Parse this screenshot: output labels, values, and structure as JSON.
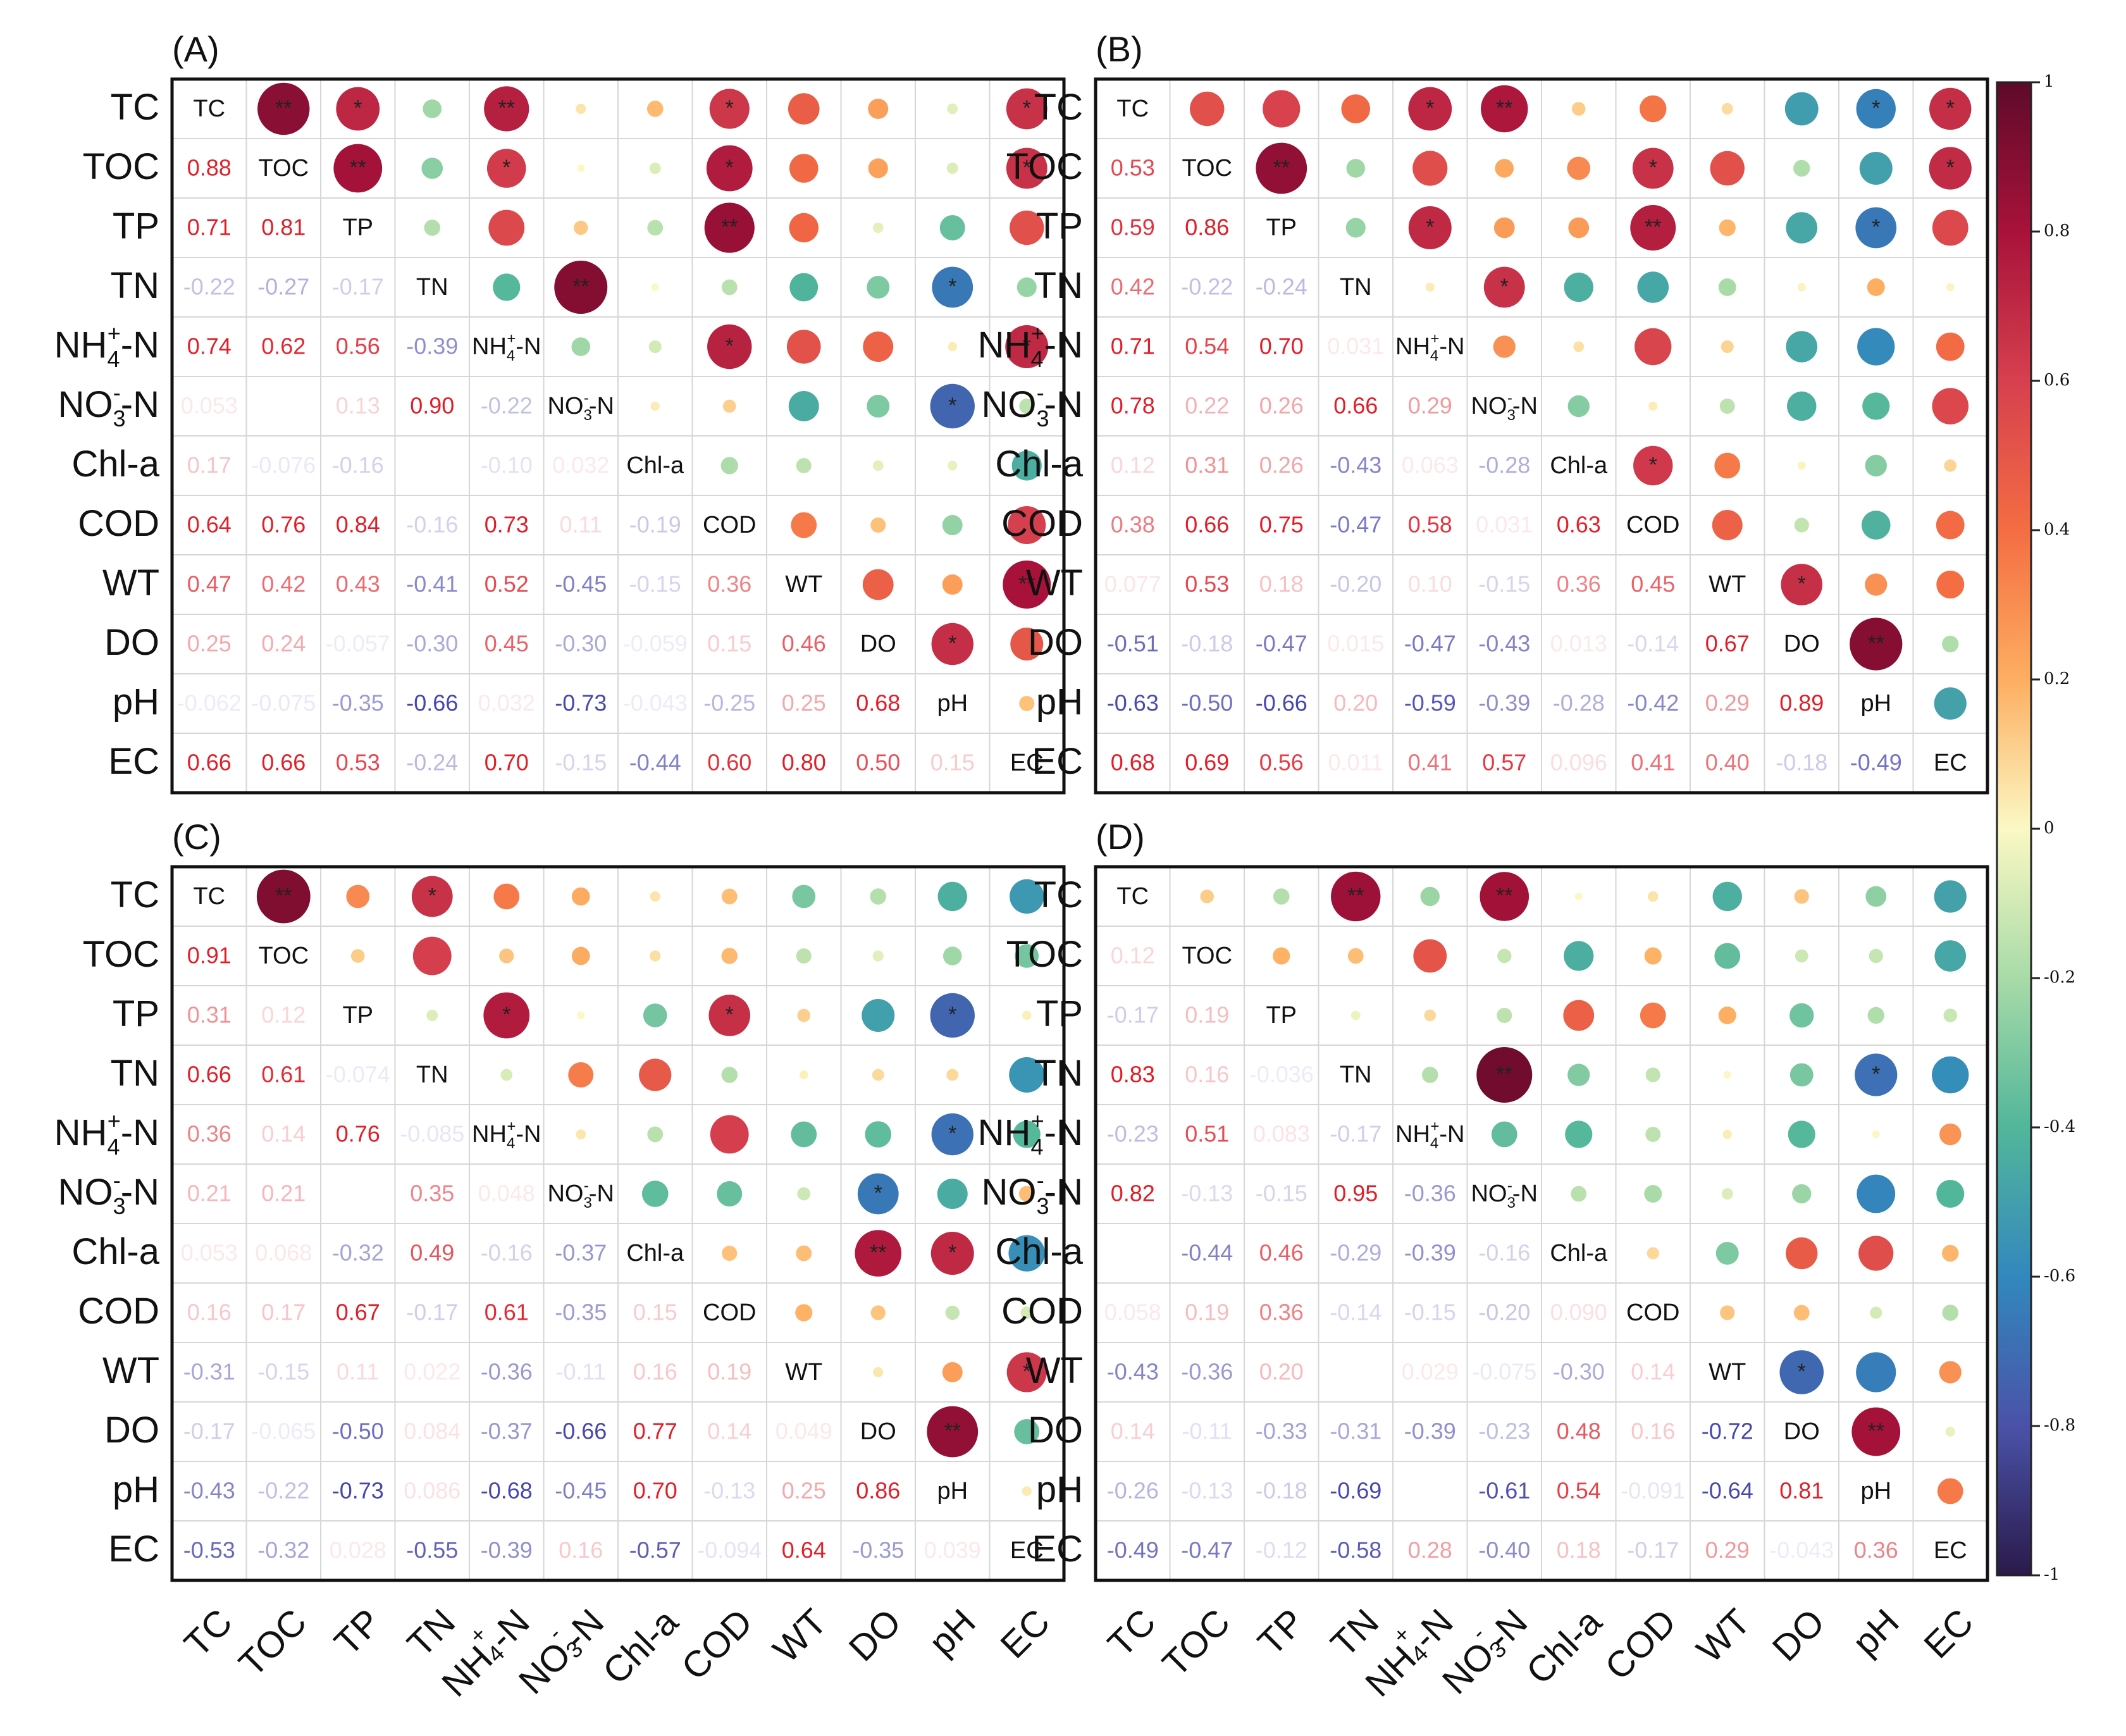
{
  "chart_data": {
    "type": "correlation-matrix",
    "variables": [
      "TC",
      "TOC",
      "TP",
      "TN",
      "NH4+-N",
      "NO3--N",
      "Chl-a",
      "COD",
      "WT",
      "DO",
      "pH",
      "EC"
    ],
    "variable_labels": [
      {
        "base": "TC",
        "sub": "",
        "sup": "",
        "tail": ""
      },
      {
        "base": "TOC",
        "sub": "",
        "sup": "",
        "tail": ""
      },
      {
        "base": "TP",
        "sub": "",
        "sup": "",
        "tail": ""
      },
      {
        "base": "TN",
        "sub": "",
        "sup": "",
        "tail": ""
      },
      {
        "base": "NH",
        "sub": "4",
        "sup": "+",
        "tail": "-N"
      },
      {
        "base": "NO",
        "sub": "3",
        "sup": "-",
        "tail": "-N"
      },
      {
        "base": "Chl-a",
        "sub": "",
        "sup": "",
        "tail": ""
      },
      {
        "base": "COD",
        "sub": "",
        "sup": "",
        "tail": ""
      },
      {
        "base": "WT",
        "sub": "",
        "sup": "",
        "tail": ""
      },
      {
        "base": "DO",
        "sub": "",
        "sup": "",
        "tail": ""
      },
      {
        "base": "pH",
        "sub": "",
        "sup": "",
        "tail": ""
      },
      {
        "base": "EC",
        "sub": "",
        "sup": "",
        "tail": ""
      }
    ],
    "colorbar": {
      "range": [
        -1,
        1
      ],
      "ticks": [
        "1",
        "0.8",
        "0.6",
        "0.4",
        "0.2",
        "0",
        "-0.2",
        "-0.4",
        "-0.6",
        "-0.8",
        "-1"
      ],
      "tick_values": [
        1,
        0.8,
        0.6,
        0.4,
        0.2,
        0,
        -0.2,
        -0.4,
        -0.6,
        -0.8,
        -1
      ],
      "colormap": "Spectral_r"
    },
    "panels": [
      {
        "label": "(A)",
        "lower_labels": [
          [
            "0.88"
          ],
          [
            "0.71",
            "0.81"
          ],
          [
            "-0.22",
            "-0.27",
            "-0.17"
          ],
          [
            "0.74",
            "0.62",
            "0.56",
            "-0.39"
          ],
          [
            "0.053",
            "",
            "0.13",
            "0.90",
            "-0.22"
          ],
          [
            "0.17",
            "-0.076",
            "-0.16",
            "",
            "-0.10",
            "0.032"
          ],
          [
            "0.64",
            "0.76",
            "0.84",
            "-0.16",
            "0.73",
            "0.11",
            "-0.19"
          ],
          [
            "0.47",
            "0.42",
            "0.43",
            "-0.41",
            "0.52",
            "-0.45",
            "-0.15",
            "0.36"
          ],
          [
            "0.25",
            "0.24",
            "-0.057",
            "-0.30",
            "0.45",
            "-0.30",
            "-0.059",
            "0.15",
            "0.46"
          ],
          [
            "-0.062",
            "-0.075",
            "-0.35",
            "-0.66",
            "0.032",
            "-0.73",
            "-0.043",
            "-0.25",
            "0.25",
            "0.68"
          ],
          [
            "0.66",
            "0.66",
            "0.53",
            "-0.24",
            "0.70",
            "-0.15",
            "-0.44",
            "0.60",
            "0.80",
            "0.50",
            "0.15"
          ]
        ],
        "significance": [
          [
            "",
            "**",
            "*",
            "",
            "**",
            "",
            "",
            "*",
            "",
            "",
            "",
            "*"
          ],
          [
            "",
            "",
            "**",
            "",
            "*",
            "",
            "",
            "*",
            "",
            "",
            "",
            "*"
          ],
          [
            "",
            "",
            "",
            "",
            "",
            "",
            "",
            "**",
            "",
            "",
            "",
            ""
          ],
          [
            "",
            "",
            "",
            "",
            "",
            "**",
            "",
            "",
            "",
            "",
            "*",
            ""
          ],
          [
            "",
            "",
            "",
            "",
            "",
            "",
            "",
            "*",
            "",
            "",
            "",
            "*"
          ],
          [
            "",
            "",
            "",
            "",
            "",
            "",
            "",
            "",
            "",
            "",
            "*",
            ""
          ],
          [
            "",
            "",
            "",
            "",
            "",
            "",
            "",
            "",
            "",
            "",
            "",
            ""
          ],
          [
            "",
            "",
            "",
            "",
            "",
            "",
            "",
            "",
            "",
            "",
            "",
            ""
          ],
          [
            "",
            "",
            "",
            "",
            "",
            "",
            "",
            "",
            "",
            "",
            "",
            "**"
          ],
          [
            "",
            "",
            "",
            "",
            "",
            "",
            "",
            "",
            "",
            "",
            "*",
            ""
          ],
          [
            "",
            "",
            "",
            "",
            "",
            "",
            "",
            "",
            "",
            "",
            "",
            ""
          ]
        ]
      },
      {
        "label": "(B)",
        "lower_labels": [
          [
            "0.53"
          ],
          [
            "0.59",
            "0.86"
          ],
          [
            "0.42",
            "-0.22",
            "-0.24"
          ],
          [
            "0.71",
            "0.54",
            "0.70",
            "0.031"
          ],
          [
            "0.78",
            "0.22",
            "0.26",
            "0.66",
            "0.29"
          ],
          [
            "0.12",
            "0.31",
            "0.26",
            "-0.43",
            "0.063",
            "-0.28"
          ],
          [
            "0.38",
            "0.66",
            "0.75",
            "-0.47",
            "0.58",
            "0.031",
            "0.63"
          ],
          [
            "0.077",
            "0.53",
            "0.18",
            "-0.20",
            "0.10",
            "-0.15",
            "0.36",
            "0.45"
          ],
          [
            "-0.51",
            "-0.18",
            "-0.47",
            "0.015",
            "-0.47",
            "-0.43",
            "0.013",
            "-0.14",
            "0.67"
          ],
          [
            "-0.63",
            "-0.50",
            "-0.66",
            "0.20",
            "-0.59",
            "-0.39",
            "-0.28",
            "-0.42",
            "0.29",
            "0.89"
          ],
          [
            "0.68",
            "0.69",
            "0.56",
            "0.011",
            "0.41",
            "0.57",
            "0.096",
            "0.41",
            "0.40",
            "-0.18",
            "-0.49"
          ]
        ],
        "significance": [
          [
            "",
            "",
            "",
            "",
            "*",
            "**",
            "",
            "",
            "",
            "",
            "*",
            "*"
          ],
          [
            "",
            "",
            "**",
            "",
            "",
            "",
            "",
            "*",
            "",
            "",
            "",
            "*"
          ],
          [
            "",
            "",
            "",
            "",
            "*",
            "",
            "",
            "**",
            "",
            "",
            "*",
            ""
          ],
          [
            "",
            "",
            "",
            "",
            "",
            "*",
            "",
            "",
            "",
            "",
            "",
            ""
          ],
          [
            "",
            "",
            "",
            "",
            "",
            "",
            "",
            "",
            "",
            "",
            "",
            ""
          ],
          [
            "",
            "",
            "",
            "",
            "",
            "",
            "",
            "",
            "",
            "",
            "",
            ""
          ],
          [
            "",
            "",
            "",
            "",
            "",
            "",
            "",
            "*",
            "",
            "",
            "",
            ""
          ],
          [
            "",
            "",
            "",
            "",
            "",
            "",
            "",
            "",
            "",
            "",
            "",
            ""
          ],
          [
            "",
            "",
            "",
            "",
            "",
            "",
            "",
            "",
            "",
            "*",
            "",
            ""
          ],
          [
            "",
            "",
            "",
            "",
            "",
            "",
            "",
            "",
            "",
            "",
            "**",
            ""
          ],
          [
            "",
            "",
            "",
            "",
            "",
            "",
            "",
            "",
            "",
            "",
            "",
            ""
          ]
        ]
      },
      {
        "label": "(C)",
        "lower_labels": [
          [
            "0.91"
          ],
          [
            "0.31",
            "0.12"
          ],
          [
            "0.66",
            "0.61",
            "-0.074"
          ],
          [
            "0.36",
            "0.14",
            "0.76",
            "-0.085"
          ],
          [
            "0.21",
            "0.21",
            "",
            "0.35",
            "0.048"
          ],
          [
            "0.053",
            "0.068",
            "-0.32",
            "0.49",
            "-0.16",
            "-0.37"
          ],
          [
            "0.16",
            "0.17",
            "0.67",
            "-0.17",
            "0.61",
            "-0.35",
            "0.15"
          ],
          [
            "-0.31",
            "-0.15",
            "0.11",
            "0.022",
            "-0.36",
            "-0.11",
            "0.16",
            "0.19"
          ],
          [
            "-0.17",
            "-0.065",
            "-0.50",
            "0.084",
            "-0.37",
            "-0.66",
            "0.77",
            "0.14",
            "0.049"
          ],
          [
            "-0.43",
            "-0.22",
            "-0.73",
            "0.086",
            "-0.68",
            "-0.45",
            "0.70",
            "-0.13",
            "0.25",
            "0.86"
          ],
          [
            "-0.53",
            "-0.32",
            "0.028",
            "-0.55",
            "-0.39",
            "0.16",
            "-0.57",
            "-0.094",
            "0.64",
            "-0.35",
            "0.039"
          ]
        ],
        "significance": [
          [
            "",
            "**",
            "",
            "*",
            "",
            "",
            "",
            "",
            "",
            "",
            "",
            ""
          ],
          [
            "",
            "",
            "",
            "",
            "",
            "",
            "",
            "",
            "",
            "",
            "",
            ""
          ],
          [
            "",
            "",
            "",
            "",
            "*",
            "",
            "",
            "*",
            "",
            "",
            "*",
            ""
          ],
          [
            "",
            "",
            "",
            "",
            "",
            "",
            "",
            "",
            "",
            "",
            "",
            ""
          ],
          [
            "",
            "",
            "",
            "",
            "",
            "",
            "",
            "",
            "",
            "",
            "*",
            ""
          ],
          [
            "",
            "",
            "",
            "",
            "",
            "",
            "",
            "",
            "",
            "*",
            "",
            ""
          ],
          [
            "",
            "",
            "",
            "",
            "",
            "",
            "",
            "",
            "",
            "**",
            "*",
            ""
          ],
          [
            "",
            "",
            "",
            "",
            "",
            "",
            "",
            "",
            "",
            "",
            "",
            ""
          ],
          [
            "",
            "",
            "",
            "",
            "",
            "",
            "",
            "",
            "",
            "",
            "",
            "*"
          ],
          [
            "",
            "",
            "",
            "",
            "",
            "",
            "",
            "",
            "",
            "",
            "**",
            ""
          ],
          [
            "",
            "",
            "",
            "",
            "",
            "",
            "",
            "",
            "",
            "",
            "",
            ""
          ]
        ]
      },
      {
        "label": "(D)",
        "lower_labels": [
          [
            "0.12"
          ],
          [
            "-0.17",
            "0.19"
          ],
          [
            "0.83",
            "0.16",
            "-0.036"
          ],
          [
            "-0.23",
            "0.51",
            "0.083",
            "-0.17"
          ],
          [
            "0.82",
            "-0.13",
            "-0.15",
            "0.95",
            "-0.36"
          ],
          [
            "",
            "-0.44",
            "0.46",
            "-0.29",
            "-0.39",
            "-0.16"
          ],
          [
            "0.058",
            "0.19",
            "0.36",
            "-0.14",
            "-0.15",
            "-0.20",
            "0.090"
          ],
          [
            "-0.43",
            "-0.36",
            "0.20",
            "",
            "0.029",
            "-0.075",
            "-0.30",
            "0.14"
          ],
          [
            "0.14",
            "-0.11",
            "-0.33",
            "-0.31",
            "-0.39",
            "-0.23",
            "0.48",
            "0.16",
            "-0.72"
          ],
          [
            "-0.26",
            "-0.13",
            "-0.18",
            "-0.69",
            "",
            "-0.61",
            "0.54",
            "-0.091",
            "-0.64",
            "0.81"
          ],
          [
            "-0.49",
            "-0.47",
            "-0.12",
            "-0.58",
            "0.28",
            "-0.40",
            "0.18",
            "-0.17",
            "0.29",
            "-0.043",
            "0.36"
          ]
        ],
        "significance": [
          [
            "",
            "",
            "",
            "**",
            "",
            "**",
            "",
            "",
            "",
            "",
            "",
            ""
          ],
          [
            "",
            "",
            "",
            "",
            "",
            "",
            "",
            "",
            "",
            "",
            "",
            ""
          ],
          [
            "",
            "",
            "",
            "",
            "",
            "",
            "",
            "",
            "",
            "",
            "",
            ""
          ],
          [
            "",
            "",
            "",
            "",
            "",
            "**",
            "",
            "",
            "",
            "",
            "*",
            ""
          ],
          [
            "",
            "",
            "",
            "",
            "",
            "",
            "",
            "",
            "",
            "",
            "",
            ""
          ],
          [
            "",
            "",
            "",
            "",
            "",
            "",
            "",
            "",
            "",
            "",
            "",
            ""
          ],
          [
            "",
            "",
            "",
            "",
            "",
            "",
            "",
            "",
            "",
            "",
            "",
            ""
          ],
          [
            "",
            "",
            "",
            "",
            "",
            "",
            "",
            "",
            "",
            "",
            "",
            ""
          ],
          [
            "",
            "",
            "",
            "",
            "",
            "",
            "",
            "",
            "",
            "*",
            "",
            ""
          ],
          [
            "",
            "",
            "",
            "",
            "",
            "",
            "",
            "",
            "",
            "",
            "**",
            ""
          ],
          [
            "",
            "",
            "",
            "",
            "",
            "",
            "",
            "",
            "",
            "",
            "",
            ""
          ]
        ]
      }
    ]
  }
}
